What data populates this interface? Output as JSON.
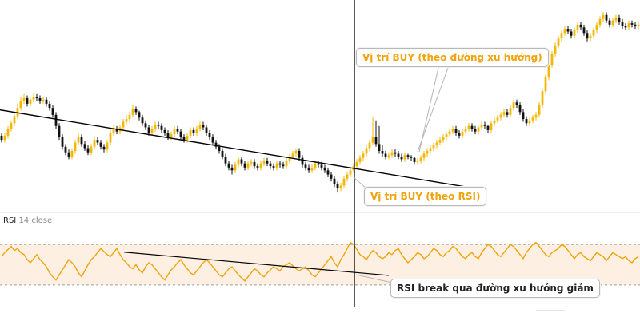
{
  "indicator": {
    "name": "RSI",
    "params": "14 close"
  },
  "annotations": {
    "buy_trend": "Vị trí BUY (theo đường xu hướng)",
    "buy_rsi": "Vị trí BUY (theo RSI)",
    "rsi_break": "RSI break qua đường xu hướng giảm"
  },
  "colors": {
    "candle_up": "#f2b705",
    "candle_down": "#111111",
    "rsi_line": "#f0a30a",
    "rsi_band_fill": "#fdf0e2",
    "trendline": "#000000",
    "callout_text_accent": "#f0a30a"
  },
  "chart_data": [
    {
      "type": "candlestick",
      "title": "",
      "xlabel": "",
      "ylabel": "",
      "grid": false,
      "x": [
        0,
        1,
        2,
        3,
        4,
        5,
        6,
        7,
        8,
        9,
        10,
        11,
        12,
        13,
        14,
        15,
        16,
        17,
        18,
        19,
        20,
        21,
        22,
        23,
        24,
        25,
        26,
        27,
        28,
        29,
        30,
        31,
        32,
        33,
        34,
        35,
        36,
        37,
        38,
        39,
        40,
        41,
        42,
        43,
        44,
        45,
        46,
        47,
        48,
        49,
        50,
        51,
        52,
        53,
        54,
        55,
        56,
        57,
        58,
        59,
        60,
        61,
        62,
        63,
        64,
        65,
        66,
        67,
        68,
        69,
        70,
        71,
        72,
        73,
        74,
        75,
        76,
        77,
        78,
        79,
        80,
        81,
        82,
        83,
        84,
        85,
        86,
        87,
        88,
        89,
        90,
        91,
        92,
        93,
        94,
        95,
        96,
        97,
        98,
        99,
        100,
        101,
        102,
        103,
        104,
        105,
        106,
        107,
        108,
        109,
        110,
        111,
        112,
        113,
        114,
        115,
        116,
        117,
        118,
        119,
        120,
        121,
        122,
        123,
        124,
        125,
        126,
        127,
        128,
        129,
        130,
        131,
        132,
        133,
        134,
        135,
        136,
        137,
        138,
        139,
        140,
        141,
        142,
        143,
        144,
        145,
        146,
        147,
        148,
        149,
        150,
        151,
        152,
        153,
        154,
        155,
        156,
        157,
        158,
        159,
        160,
        161,
        162,
        163,
        164,
        165,
        166,
        167,
        168,
        169,
        170,
        171,
        172,
        173,
        174,
        175,
        176,
        177,
        178,
        179,
        180,
        181,
        182,
        183,
        184,
        185,
        186,
        187,
        188,
        189,
        190,
        191,
        192,
        193,
        194,
        195,
        196,
        197,
        198,
        199
      ],
      "close": [
        50,
        53,
        58,
        62,
        67,
        73,
        78,
        80,
        76,
        79,
        81,
        80,
        78,
        79,
        76,
        73,
        68,
        60,
        52,
        45,
        41,
        38,
        42,
        48,
        52,
        47,
        44,
        41,
        45,
        50,
        48,
        45,
        43,
        48,
        55,
        58,
        56,
        59,
        63,
        65,
        68,
        72,
        70,
        66,
        62,
        59,
        55,
        58,
        61,
        60,
        57,
        55,
        52,
        54,
        58,
        56,
        52,
        50,
        53,
        57,
        55,
        58,
        61,
        59,
        55,
        52,
        48,
        45,
        42,
        38,
        33,
        30,
        28,
        32,
        36,
        33,
        30,
        33,
        34,
        31,
        30,
        33,
        35,
        33,
        31,
        30,
        33,
        32,
        31,
        35,
        38,
        40,
        42,
        37,
        32,
        30,
        28,
        30,
        33,
        32,
        30,
        28,
        25,
        22,
        18,
        15,
        17,
        22,
        25,
        28,
        31,
        34,
        37,
        40,
        44,
        48,
        52,
        47,
        42,
        40,
        38,
        39,
        41,
        40,
        38,
        36,
        39,
        38,
        37,
        34,
        35,
        37,
        40,
        42,
        44,
        46,
        48,
        50,
        52,
        54,
        56,
        58,
        55,
        53,
        56,
        58,
        60,
        58,
        56,
        59,
        61,
        60,
        57,
        62,
        64,
        66,
        68,
        70,
        68,
        73,
        77,
        75,
        70,
        65,
        62,
        64,
        66,
        68,
        75,
        85,
        95,
        104,
        112,
        118,
        123,
        127,
        130,
        128,
        125,
        129,
        133,
        131,
        127,
        123,
        125,
        129,
        133,
        137,
        140,
        136,
        133,
        136,
        138,
        135,
        132,
        131,
        134,
        133,
        132,
        133
      ],
      "open": [
        53,
        50,
        53,
        58,
        62,
        67,
        73,
        78,
        80,
        76,
        79,
        81,
        80,
        78,
        79,
        76,
        73,
        68,
        60,
        52,
        45,
        41,
        38,
        42,
        48,
        52,
        47,
        44,
        41,
        45,
        50,
        48,
        45,
        43,
        48,
        55,
        58,
        56,
        59,
        63,
        65,
        68,
        72,
        70,
        66,
        62,
        59,
        55,
        58,
        61,
        60,
        57,
        55,
        52,
        54,
        58,
        56,
        52,
        50,
        53,
        57,
        55,
        58,
        61,
        59,
        55,
        52,
        48,
        45,
        42,
        38,
        33,
        30,
        28,
        32,
        36,
        33,
        30,
        33,
        34,
        31,
        30,
        33,
        35,
        33,
        31,
        30,
        33,
        32,
        31,
        35,
        38,
        40,
        42,
        37,
        32,
        30,
        28,
        30,
        33,
        32,
        30,
        28,
        25,
        22,
        18,
        15,
        17,
        22,
        25,
        28,
        31,
        34,
        37,
        40,
        44,
        48,
        52,
        47,
        42,
        40,
        38,
        39,
        41,
        40,
        38,
        36,
        39,
        38,
        37,
        34,
        35,
        37,
        40,
        42,
        44,
        46,
        48,
        50,
        52,
        54,
        56,
        58,
        55,
        53,
        56,
        58,
        60,
        58,
        56,
        59,
        61,
        60,
        57,
        62,
        64,
        66,
        68,
        70,
        68,
        73,
        77,
        75,
        70,
        65,
        62,
        64,
        66,
        68,
        75,
        85,
        95,
        104,
        112,
        118,
        123,
        127,
        130,
        128,
        125,
        129,
        133,
        131,
        127,
        123,
        125,
        129,
        133,
        137,
        140,
        136,
        133,
        136,
        138,
        135,
        132,
        131,
        134,
        133,
        132
      ],
      "high": [
        55,
        55,
        60,
        64,
        69,
        76,
        81,
        83,
        82,
        81,
        84,
        83,
        82,
        81,
        81,
        78,
        75,
        70,
        62,
        54,
        47,
        43,
        44,
        50,
        55,
        54,
        49,
        46,
        47,
        52,
        52,
        50,
        47,
        50,
        58,
        61,
        60,
        61,
        65,
        68,
        70,
        75,
        74,
        71,
        68,
        64,
        61,
        60,
        63,
        63,
        62,
        59,
        57,
        56,
        60,
        60,
        58,
        54,
        55,
        59,
        59,
        60,
        63,
        63,
        61,
        57,
        54,
        50,
        47,
        44,
        40,
        35,
        32,
        34,
        38,
        38,
        35,
        35,
        36,
        36,
        33,
        35,
        37,
        37,
        35,
        33,
        35,
        35,
        34,
        37,
        40,
        42,
        44,
        44,
        39,
        34,
        32,
        32,
        35,
        35,
        34,
        32,
        30,
        27,
        24,
        20,
        19,
        24,
        27,
        30,
        33,
        36,
        39,
        42,
        46,
        50,
        66,
        64,
        60,
        46,
        42,
        41,
        43,
        43,
        42,
        40,
        41,
        40,
        39,
        38,
        37,
        39,
        42,
        44,
        46,
        48,
        50,
        52,
        54,
        56,
        58,
        60,
        60,
        57,
        58,
        60,
        62,
        62,
        60,
        61,
        63,
        63,
        61,
        64,
        66,
        68,
        70,
        72,
        72,
        75,
        79,
        79,
        77,
        72,
        67,
        66,
        68,
        70,
        77,
        87,
        97,
        106,
        114,
        120,
        125,
        129,
        132,
        132,
        130,
        131,
        135,
        135,
        133,
        129,
        127,
        131,
        135,
        139,
        142,
        142,
        138,
        138,
        140,
        140,
        137,
        134,
        136,
        136,
        135,
        135
      ],
      "low": [
        48,
        48,
        51,
        56,
        60,
        65,
        71,
        76,
        74,
        74,
        77,
        78,
        76,
        76,
        74,
        71,
        66,
        58,
        50,
        43,
        39,
        36,
        36,
        40,
        46,
        45,
        42,
        39,
        39,
        43,
        46,
        43,
        41,
        41,
        46,
        53,
        54,
        54,
        57,
        61,
        63,
        66,
        68,
        64,
        60,
        57,
        53,
        53,
        56,
        58,
        55,
        53,
        50,
        50,
        52,
        54,
        50,
        48,
        48,
        51,
        53,
        53,
        56,
        57,
        53,
        50,
        46,
        43,
        40,
        36,
        31,
        28,
        25,
        26,
        30,
        31,
        28,
        28,
        31,
        29,
        28,
        28,
        31,
        31,
        29,
        28,
        28,
        30,
        29,
        29,
        33,
        36,
        38,
        35,
        30,
        28,
        26,
        26,
        28,
        30,
        28,
        26,
        23,
        20,
        16,
        12,
        13,
        15,
        20,
        23,
        26,
        29,
        32,
        35,
        38,
        42,
        46,
        45,
        40,
        38,
        36,
        36,
        37,
        38,
        36,
        34,
        34,
        36,
        35,
        32,
        32,
        33,
        35,
        38,
        40,
        42,
        44,
        46,
        48,
        50,
        52,
        54,
        53,
        51,
        51,
        54,
        56,
        56,
        54,
        54,
        57,
        58,
        55,
        55,
        60,
        62,
        64,
        66,
        66,
        66,
        71,
        73,
        68,
        63,
        60,
        60,
        62,
        64,
        66,
        73,
        83,
        93,
        102,
        110,
        116,
        121,
        125,
        126,
        123,
        123,
        127,
        129,
        125,
        121,
        121,
        123,
        127,
        131,
        135,
        134,
        131,
        131,
        134,
        133,
        130,
        129,
        129,
        131,
        130,
        130
      ],
      "ylim": [
        0,
        145
      ],
      "trendline": {
        "from": [
          0,
          75
        ],
        "to": [
          199,
          18
        ]
      }
    },
    {
      "type": "line",
      "title": "",
      "xlabel": "",
      "ylabel": "",
      "grid": false,
      "series": [
        {
          "values": [
            58,
            62,
            65,
            68,
            64,
            66,
            62,
            60,
            55,
            52,
            56,
            60,
            55,
            52,
            48,
            42,
            38,
            35,
            40,
            45,
            50,
            55,
            52,
            48,
            42,
            38,
            44,
            50,
            55,
            58,
            62,
            66,
            63,
            60,
            58,
            62,
            66,
            60,
            55,
            52,
            48,
            46,
            50,
            45,
            42,
            48,
            52,
            50,
            46,
            42,
            38,
            35,
            40,
            45,
            48,
            52,
            55,
            50,
            46,
            42,
            40,
            44,
            48,
            52,
            55,
            52,
            48,
            44,
            40,
            38,
            42,
            46,
            48,
            44,
            40,
            37,
            34,
            38,
            42,
            46,
            44,
            40,
            38,
            42,
            45,
            48,
            46,
            44,
            48,
            50,
            52,
            49,
            46,
            44,
            46,
            48,
            44,
            40,
            38,
            42,
            46,
            50,
            54,
            58,
            52,
            48,
            55,
            60,
            66,
            72,
            70,
            65,
            60,
            58,
            55,
            60,
            64,
            62,
            58,
            56,
            58,
            62,
            60,
            64,
            66,
            60,
            56,
            52,
            55,
            58,
            62,
            60,
            56,
            58,
            62,
            66,
            64,
            60,
            58,
            62,
            64,
            68,
            66,
            62,
            58,
            56,
            60,
            62,
            58,
            56,
            62,
            66,
            70,
            68,
            64,
            60,
            58,
            62,
            66,
            70,
            68,
            64,
            60,
            56,
            62,
            66,
            70,
            72,
            68,
            64,
            60,
            58,
            62,
            64,
            66,
            70,
            68,
            64,
            60,
            56,
            60,
            62,
            58,
            56,
            54,
            58,
            62,
            60,
            58,
            54,
            58,
            62,
            60,
            58,
            56,
            58,
            54,
            52,
            56,
            58
          ]
        }
      ],
      "ylim": [
        0,
        100
      ],
      "levels": [
        70,
        30
      ],
      "trendline": {
        "from": [
          53,
          64
        ],
        "to": [
          180,
          41
        ]
      }
    }
  ]
}
